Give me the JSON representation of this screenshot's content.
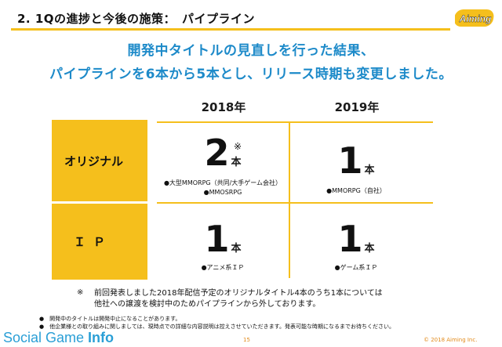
{
  "header": {
    "title": "2. 1Qの進捗と今後の施策：　パイプライン",
    "logo_text": "Aiming"
  },
  "headline": {
    "line1": "開発中タイトルの見直しを行った結果、",
    "line2": "パイプラインを6本から5本とし、リリース時期も変更しました。"
  },
  "table": {
    "years": [
      "2018年",
      "2019年"
    ],
    "rows": [
      {
        "label": "オリジナル",
        "cells": [
          {
            "count": "2",
            "unit": "本",
            "mark": "※",
            "notes": [
              "●大型MMORPG（共同/大手ゲーム会社）",
              "●MMOSRPG"
            ]
          },
          {
            "count": "1",
            "unit": "本",
            "mark": "",
            "notes": [
              "●MMORPG（自社）"
            ]
          }
        ]
      },
      {
        "label": "ＩＰ",
        "cells": [
          {
            "count": "1",
            "unit": "本",
            "mark": "",
            "notes": [
              "●アニメ系ＩＰ"
            ]
          },
          {
            "count": "1",
            "unit": "本",
            "mark": "",
            "notes": [
              "●ゲーム系ＩＰ"
            ]
          }
        ]
      }
    ]
  },
  "footnote": {
    "mark": "※",
    "line1": "前回発表しました2018年配信予定のオリジナルタイトル4本のうち1本については",
    "line2": "他社への譲渡を検討中のためパイプラインから外しております。"
  },
  "bullets": [
    "●　開発中のタイトルは開発中止になることがあります。",
    "●　他企業様との取り組みに関しましては、現時点での詳細な内容説明は控えさせていただきます。発表可能な時期になるまでお待ちください。"
  ],
  "footer": {
    "brand_plain": "Social Game ",
    "brand_bold": "Info",
    "page": "15",
    "copyright": "© 2018 Aiming Inc."
  },
  "colors": {
    "accent": "#f5bf1c",
    "headline": "#1d8ac9",
    "brand": "#2a9fd6"
  }
}
